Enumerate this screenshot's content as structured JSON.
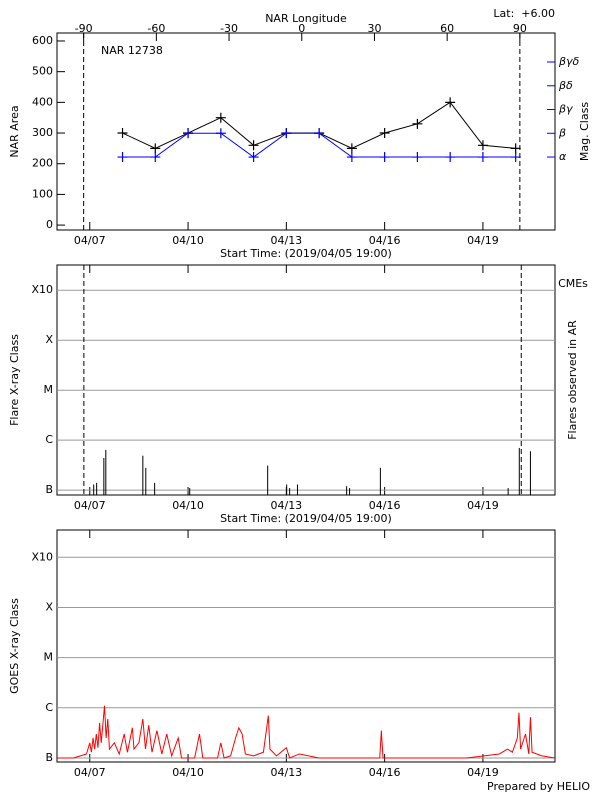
{
  "chart_data": [
    {
      "type": "line",
      "title": "NAR 12738",
      "annotation": "Lat:  +6.00",
      "ylabel": "NAR Area",
      "y2label": "Mag. Class",
      "xlabel": "Start Time: (2019/04/05 19:00)",
      "x2label": "NAR Longitude",
      "xlim": [
        6.0,
        21.2
      ],
      "xticks": [
        {
          "value": 7,
          "label": "04/07"
        },
        {
          "value": 10,
          "label": "04/10"
        },
        {
          "value": 13,
          "label": "04/13"
        },
        {
          "value": 16,
          "label": "04/16"
        },
        {
          "value": 19,
          "label": "04/19"
        }
      ],
      "x2lim": [
        -101,
        104.5
      ],
      "x2ticks": [
        -90,
        -60,
        -30,
        0,
        30,
        60,
        90
      ],
      "ylim": [
        -16,
        626
      ],
      "yticks": [
        0,
        100,
        200,
        300,
        400,
        500,
        600
      ],
      "y2lim": [
        -2.07,
        6.22
      ],
      "y2ticks": [
        {
          "value": 1,
          "label": "α"
        },
        {
          "value": 2,
          "label": "β"
        },
        {
          "value": 3,
          "label": "βγ"
        },
        {
          "value": 4,
          "label": "βδ"
        },
        {
          "value": 5,
          "label": "βγδ"
        }
      ],
      "y2color": "#0000ff",
      "limb_longitudes": [
        -90,
        90
      ],
      "x": [
        8,
        9,
        10,
        11,
        12,
        13,
        14,
        15,
        16,
        17,
        18,
        19,
        20
      ],
      "series": [
        {
          "color": "#000000",
          "marker": "+",
          "values": [
            300,
            250,
            300,
            350,
            260,
            300,
            300,
            250,
            300,
            330,
            400,
            260,
            250
          ]
        },
        {
          "color": "#0000ff",
          "marker": "+",
          "axis": "y2",
          "values": [
            1,
            1,
            2,
            2,
            1,
            2,
            2,
            1,
            1,
            1,
            1,
            1,
            1
          ]
        }
      ]
    },
    {
      "type": "stem",
      "ylabel": "Flare X-ray Class",
      "y2label": "Flares observed in AR",
      "cme_label": "CMEs",
      "cme_color": "#ff0000",
      "xlabel": "Start Time: (2019/04/05 19:00)",
      "xlim": [
        6.0,
        21.2
      ],
      "xticks": [
        {
          "value": 7,
          "label": "04/07"
        },
        {
          "value": 10,
          "label": "04/10"
        },
        {
          "value": 13,
          "label": "04/13"
        },
        {
          "value": 16,
          "label": "04/16"
        },
        {
          "value": 19,
          "label": "04/19"
        }
      ],
      "log_y": true,
      "grid": true,
      "ylim": [
        8e-08,
        0.0032
      ],
      "yticks": [
        {
          "value": 1e-07,
          "label": "B"
        },
        {
          "value": 1e-06,
          "label": "C"
        },
        {
          "value": 1e-05,
          "label": "M"
        },
        {
          "value": 0.0001,
          "label": "X"
        },
        {
          "value": 0.001,
          "label": "X10"
        }
      ],
      "limb_times": [
        6.82,
        20.17
      ],
      "color": "#000000",
      "x": [
        7.12,
        7.21,
        7.43,
        7.49,
        8.62,
        8.71,
        8.98,
        10.05,
        12.43,
        13.01,
        13.1,
        13.34,
        14.84,
        14.93,
        15.87,
        19.77,
        20.11,
        20.45
      ],
      "values": [
        1.3e-07,
        1.4e-07,
        4.4e-07,
        6.4e-07,
        4.9e-07,
        2.8e-07,
        1.4e-07,
        1.1e-07,
        3.1e-07,
        1.3e-07,
        1.1e-07,
        1.3e-07,
        1.2e-07,
        1.1e-07,
        2.8e-07,
        1.1e-07,
        7e-07,
        6e-07
      ]
    },
    {
      "type": "line",
      "ylabel": "GOES X-ray Class",
      "xlim": [
        6.0,
        21.2
      ],
      "xticks": [
        {
          "value": 7,
          "label": "04/07"
        },
        {
          "value": 10,
          "label": "04/10"
        },
        {
          "value": 13,
          "label": "04/13"
        },
        {
          "value": 16,
          "label": "04/16"
        },
        {
          "value": 19,
          "label": "04/19"
        }
      ],
      "log_y": true,
      "grid": true,
      "ylim": [
        8.3e-08,
        0.0035
      ],
      "yticks": [
        {
          "value": 1e-07,
          "label": "B"
        },
        {
          "value": 1e-06,
          "label": "C"
        },
        {
          "value": 1e-05,
          "label": "M"
        },
        {
          "value": 0.0001,
          "label": "X"
        },
        {
          "value": 0.001,
          "label": "X10"
        }
      ],
      "x": [
        6.0,
        6.5,
        6.9,
        7.0,
        7.05,
        7.1,
        7.15,
        7.2,
        7.25,
        7.3,
        7.35,
        7.45,
        7.5,
        7.55,
        7.6,
        7.75,
        7.9,
        8.05,
        8.15,
        8.3,
        8.35,
        8.5,
        8.62,
        8.7,
        8.8,
        8.9,
        9.05,
        9.2,
        9.35,
        9.5,
        9.7,
        9.8,
        10.2,
        10.35,
        10.45,
        10.9,
        11.0,
        11.1,
        11.3,
        11.45,
        11.55,
        11.65,
        11.75,
        12.0,
        12.3,
        12.45,
        12.5,
        12.7,
        13.0,
        13.1,
        13.4,
        14.0,
        15.0,
        15.85,
        15.9,
        15.95,
        17.0,
        18.5,
        19.5,
        19.75,
        19.9,
        20.05,
        20.1,
        20.15,
        20.3,
        20.4,
        20.45,
        20.5,
        20.8,
        21.2
      ],
      "series": [
        {
          "color": "#ff0000",
          "values": [
            1e-07,
            1e-07,
            1.2e-07,
            2e-07,
            1.3e-07,
            2.5e-07,
            1.5e-07,
            3e-07,
            1.6e-07,
            5e-07,
            2e-07,
            1.1e-06,
            2.5e-07,
            6e-07,
            1.5e-07,
            2e-07,
            1.2e-07,
            3e-07,
            1.3e-07,
            4e-07,
            1.5e-07,
            2e-07,
            6e-07,
            1.5e-07,
            4.5e-07,
            1.3e-07,
            3.5e-07,
            1.2e-07,
            3e-07,
            1.1e-07,
            2.5e-07,
            1e-07,
            1e-07,
            3e-07,
            1e-07,
            1e-07,
            2e-07,
            1e-07,
            1.1e-07,
            2.5e-07,
            4e-07,
            3e-07,
            1.2e-07,
            1.1e-07,
            1.3e-07,
            7e-07,
            1.5e-07,
            1.1e-07,
            1.6e-07,
            1e-07,
            1.2e-07,
            1e-07,
            1e-07,
            1e-07,
            3.5e-07,
            1e-07,
            1e-07,
            1e-07,
            1.2e-07,
            1.5e-07,
            1.3e-07,
            2.5e-07,
            8e-07,
            1.5e-07,
            3e-07,
            1.2e-07,
            6.5e-07,
            1.3e-07,
            1.1e-07,
            1e-07
          ]
        }
      ]
    }
  ],
  "credit": "Prepared by HELIO"
}
